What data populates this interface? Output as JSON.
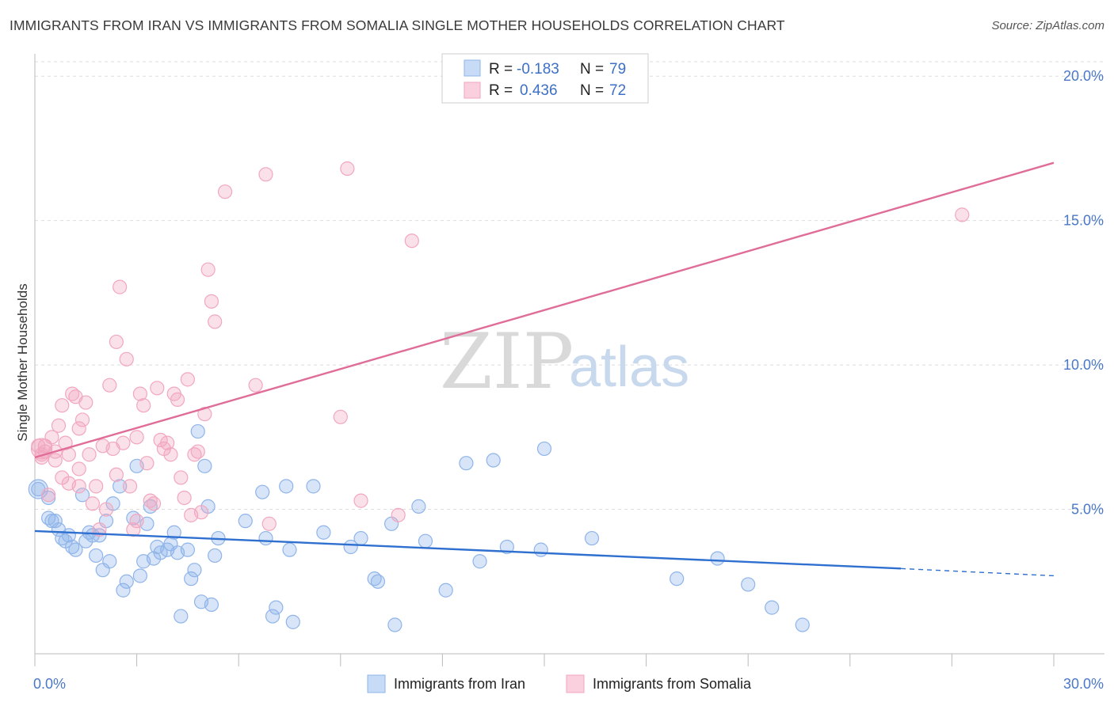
{
  "title": "IMMIGRANTS FROM IRAN VS IMMIGRANTS FROM SOMALIA SINGLE MOTHER HOUSEHOLDS CORRELATION CHART",
  "source": "Source: ZipAtlas.com",
  "watermark": {
    "zip": "ZIP",
    "atlas": "atlas"
  },
  "legend_top": [
    {
      "r_label": "R =",
      "r_value": "-0.183",
      "n_label": "N =",
      "n_value": "79",
      "color": "#8fb4ea"
    },
    {
      "r_label": "R =",
      "r_value": "0.436",
      "n_label": "N =",
      "n_value": "72",
      "color": "#f2a7bf"
    }
  ],
  "chart_data": {
    "type": "scatter",
    "title": "IMMIGRANTS FROM IRAN VS IMMIGRANTS FROM SOMALIA SINGLE MOTHER HOUSEHOLDS CORRELATION CHART",
    "xlabel": "",
    "ylabel": "Single Mother Households",
    "xlim": [
      0,
      30
    ],
    "ylim": [
      0,
      20.5
    ],
    "x_tick_labels": [
      "0.0%",
      "30.0%"
    ],
    "y_ticks": [
      5,
      10,
      15,
      20
    ],
    "y_tick_labels": [
      "5.0%",
      "10.0%",
      "15.0%",
      "20.0%"
    ],
    "grid": true,
    "legend_position": "top-center",
    "series": [
      {
        "name": "Immigrants from Iran",
        "color": "#8fb4ea",
        "line_color": "#2e6fcf",
        "trend": {
          "x0": 0,
          "y0": 4.25,
          "x1": 25.5,
          "y1": 2.95,
          "dash_to_x": 30,
          "dash_to_y": 2.7
        },
        "points": [
          [
            0.1,
            5.7
          ],
          [
            0.4,
            5.4
          ],
          [
            0.4,
            4.7
          ],
          [
            0.5,
            4.6
          ],
          [
            0.6,
            4.6
          ],
          [
            0.7,
            4.3
          ],
          [
            0.8,
            4.0
          ],
          [
            0.9,
            3.9
          ],
          [
            1.0,
            4.1
          ],
          [
            1.1,
            3.7
          ],
          [
            1.2,
            3.6
          ],
          [
            1.4,
            5.5
          ],
          [
            1.5,
            3.9
          ],
          [
            1.6,
            4.2
          ],
          [
            1.7,
            4.1
          ],
          [
            1.8,
            3.4
          ],
          [
            1.9,
            4.1
          ],
          [
            2.0,
            2.9
          ],
          [
            2.1,
            4.6
          ],
          [
            2.2,
            3.2
          ],
          [
            2.3,
            5.2
          ],
          [
            2.5,
            5.8
          ],
          [
            2.6,
            2.2
          ],
          [
            2.7,
            2.5
          ],
          [
            2.9,
            4.7
          ],
          [
            3.0,
            6.5
          ],
          [
            3.1,
            2.7
          ],
          [
            3.2,
            3.2
          ],
          [
            3.3,
            4.5
          ],
          [
            3.4,
            5.1
          ],
          [
            3.5,
            3.3
          ],
          [
            3.6,
            3.7
          ],
          [
            3.7,
            3.5
          ],
          [
            3.9,
            3.6
          ],
          [
            4.0,
            3.8
          ],
          [
            4.1,
            4.2
          ],
          [
            4.2,
            3.5
          ],
          [
            4.3,
            1.3
          ],
          [
            4.5,
            3.6
          ],
          [
            4.6,
            2.6
          ],
          [
            4.7,
            2.9
          ],
          [
            4.8,
            7.7
          ],
          [
            4.9,
            1.8
          ],
          [
            5.0,
            6.5
          ],
          [
            5.1,
            5.1
          ],
          [
            5.2,
            1.7
          ],
          [
            5.3,
            3.4
          ],
          [
            5.4,
            4.0
          ],
          [
            6.2,
            4.6
          ],
          [
            6.7,
            5.6
          ],
          [
            6.8,
            4.0
          ],
          [
            7.0,
            1.3
          ],
          [
            7.1,
            1.6
          ],
          [
            7.4,
            5.8
          ],
          [
            7.5,
            3.6
          ],
          [
            7.6,
            1.1
          ],
          [
            8.2,
            5.8
          ],
          [
            8.5,
            4.2
          ],
          [
            9.3,
            3.7
          ],
          [
            9.6,
            4.0
          ],
          [
            10.0,
            2.6
          ],
          [
            10.1,
            2.5
          ],
          [
            10.5,
            4.5
          ],
          [
            10.6,
            1.0
          ],
          [
            11.3,
            5.1
          ],
          [
            11.5,
            3.9
          ],
          [
            12.1,
            2.2
          ],
          [
            12.7,
            6.6
          ],
          [
            13.1,
            3.2
          ],
          [
            13.5,
            6.7
          ],
          [
            13.9,
            3.7
          ],
          [
            14.9,
            3.6
          ],
          [
            15.0,
            7.1
          ],
          [
            16.4,
            4.0
          ],
          [
            18.9,
            2.6
          ],
          [
            20.1,
            3.3
          ],
          [
            21.0,
            2.4
          ],
          [
            21.7,
            1.6
          ],
          [
            22.6,
            1.0
          ]
        ]
      },
      {
        "name": "Immigrants from Somalia",
        "color": "#f2a7bf",
        "line_color": "#e06d98",
        "trend": {
          "x0": 0,
          "y0": 6.8,
          "x1": 30,
          "y1": 17.0
        },
        "points": [
          [
            0.1,
            7.2
          ],
          [
            0.2,
            6.8
          ],
          [
            0.3,
            7.0
          ],
          [
            0.3,
            7.2
          ],
          [
            0.4,
            5.5
          ],
          [
            0.5,
            7.5
          ],
          [
            0.6,
            7.0
          ],
          [
            0.6,
            6.7
          ],
          [
            0.7,
            7.9
          ],
          [
            0.8,
            8.6
          ],
          [
            0.8,
            6.1
          ],
          [
            0.9,
            7.3
          ],
          [
            1.0,
            6.9
          ],
          [
            1.0,
            5.9
          ],
          [
            1.1,
            9.0
          ],
          [
            1.2,
            8.9
          ],
          [
            1.3,
            7.8
          ],
          [
            1.3,
            5.8
          ],
          [
            1.4,
            8.1
          ],
          [
            1.5,
            8.7
          ],
          [
            1.6,
            6.9
          ],
          [
            1.7,
            5.2
          ],
          [
            1.8,
            5.8
          ],
          [
            1.9,
            4.3
          ],
          [
            2.0,
            7.2
          ],
          [
            2.1,
            5.0
          ],
          [
            2.2,
            9.3
          ],
          [
            2.3,
            7.1
          ],
          [
            2.4,
            6.2
          ],
          [
            2.5,
            12.7
          ],
          [
            2.6,
            7.3
          ],
          [
            2.7,
            10.2
          ],
          [
            2.8,
            5.8
          ],
          [
            2.9,
            4.3
          ],
          [
            3.0,
            7.5
          ],
          [
            3.1,
            9.0
          ],
          [
            3.2,
            8.6
          ],
          [
            3.3,
            6.6
          ],
          [
            3.4,
            5.3
          ],
          [
            3.5,
            5.2
          ],
          [
            3.6,
            9.2
          ],
          [
            3.7,
            7.4
          ],
          [
            3.8,
            7.1
          ],
          [
            3.9,
            7.3
          ],
          [
            4.0,
            6.9
          ],
          [
            4.1,
            9.0
          ],
          [
            4.2,
            8.8
          ],
          [
            4.3,
            6.1
          ],
          [
            4.4,
            5.4
          ],
          [
            4.5,
            9.5
          ],
          [
            4.6,
            4.8
          ],
          [
            4.7,
            6.9
          ],
          [
            4.8,
            7.0
          ],
          [
            4.9,
            4.9
          ],
          [
            5.0,
            8.3
          ],
          [
            5.1,
            13.3
          ],
          [
            5.2,
            12.2
          ],
          [
            5.3,
            11.5
          ],
          [
            5.6,
            16.0
          ],
          [
            6.5,
            9.3
          ],
          [
            6.8,
            16.6
          ],
          [
            6.9,
            4.5
          ],
          [
            9.0,
            8.2
          ],
          [
            9.2,
            16.8
          ],
          [
            9.6,
            5.3
          ],
          [
            10.7,
            4.8
          ],
          [
            11.1,
            14.3
          ],
          [
            2.4,
            10.8
          ],
          [
            1.3,
            6.4
          ],
          [
            0.2,
            6.9
          ],
          [
            3.0,
            4.6
          ],
          [
            27.3,
            15.2
          ]
        ]
      }
    ]
  },
  "bottom_legend": [
    "Immigrants from Iran",
    "Immigrants from Somalia"
  ]
}
